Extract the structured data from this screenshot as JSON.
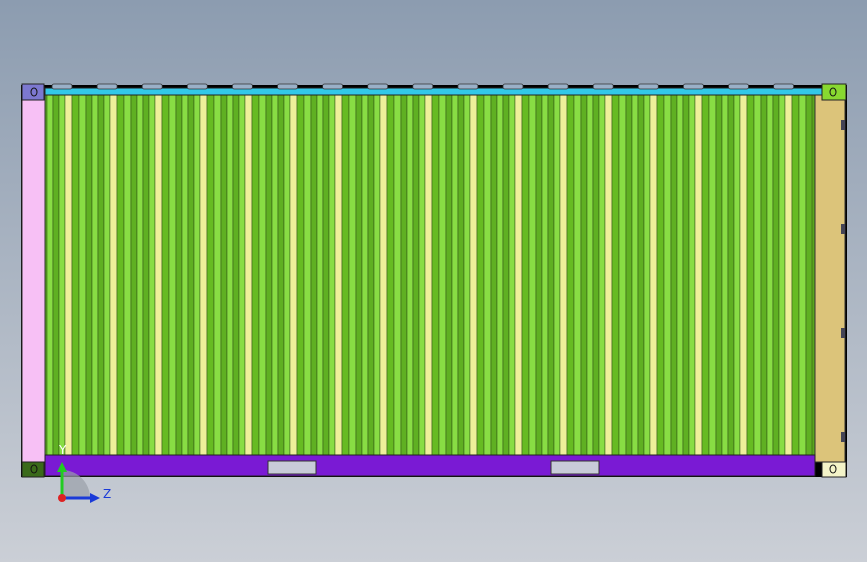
{
  "axes": {
    "y": "Y",
    "z": "Z"
  }
}
